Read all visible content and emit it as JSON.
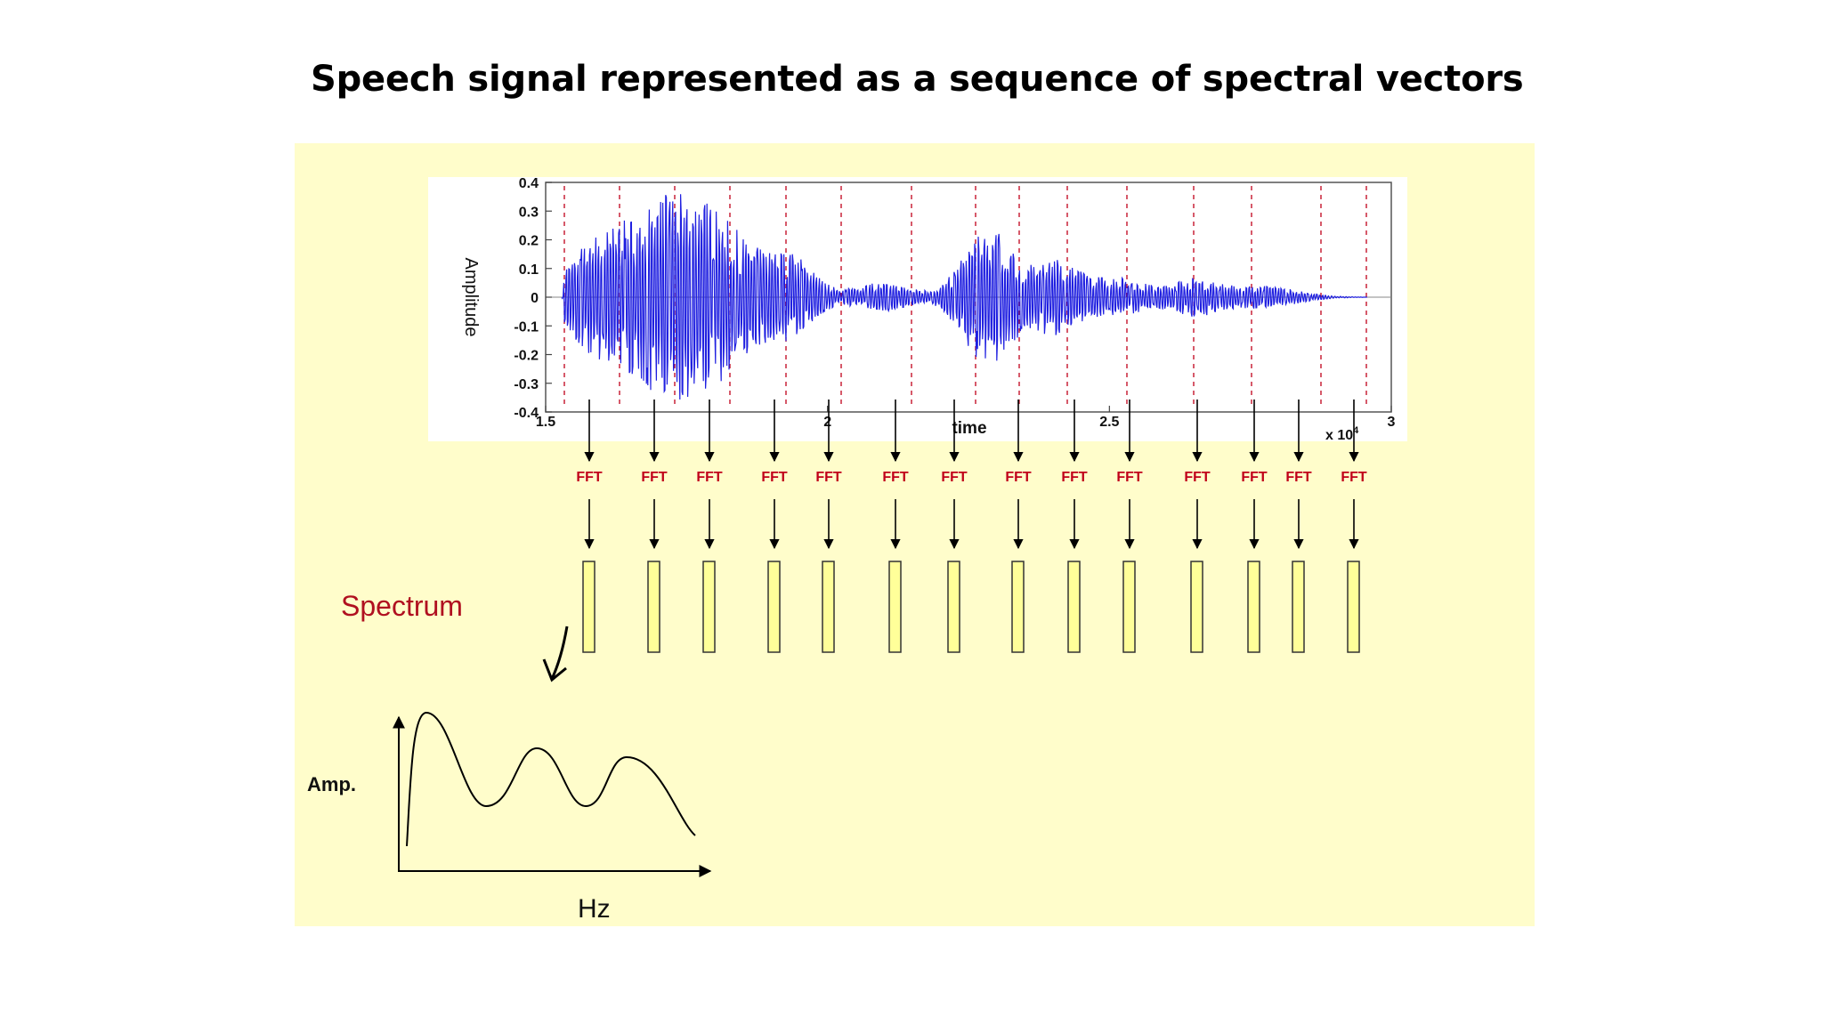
{
  "slide": {
    "title": "Speech signal represented as a sequence of spectral vectors"
  },
  "colors": {
    "background": "#fffdcb",
    "waveform": "#1f1fe0",
    "fft_label": "#c0001a",
    "spectrum_label": "#b01020",
    "spectral_vector_fill": "#ffff99"
  },
  "waveform_plot": {
    "ylabel": "Amplitude",
    "xlabel": "time",
    "x_multiplier": "x 10^4",
    "yticks": [
      "0.4",
      "0.3",
      "0.2",
      "0.1",
      "0",
      "-0.1",
      "-0.2",
      "-0.3",
      "-0.4"
    ],
    "xticks": [
      "1.5",
      "2",
      "2.5",
      "3"
    ]
  },
  "fft_label": "FFT",
  "frame_count": 14,
  "spectrum_label": "Spectrum",
  "spectrum_plot": {
    "ylabel": "Amp.",
    "xlabel": "Hz"
  }
}
